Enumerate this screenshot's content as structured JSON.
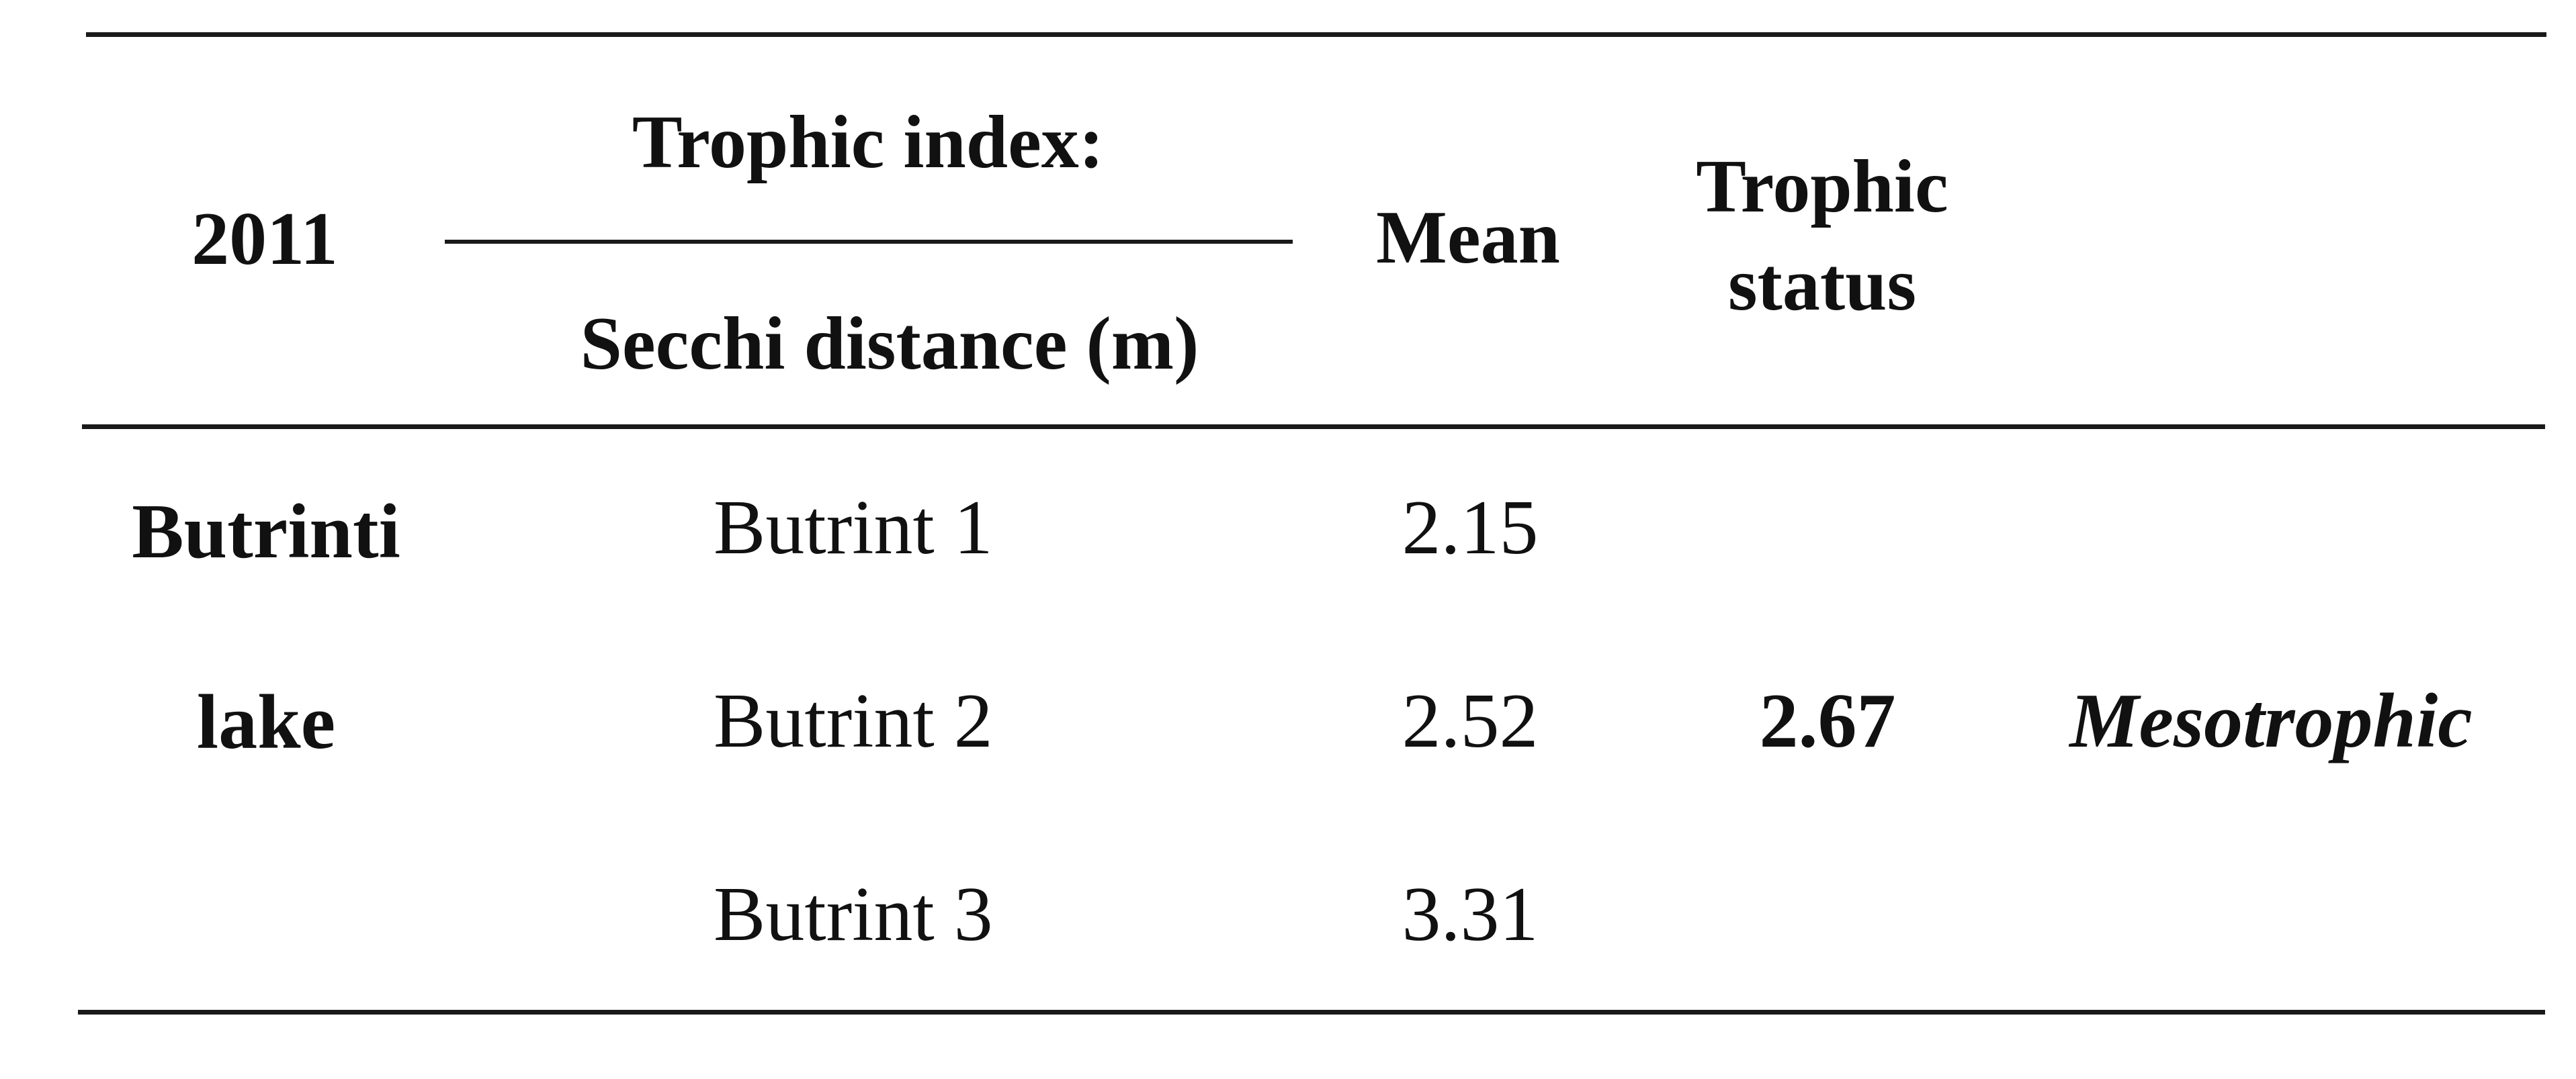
{
  "table": {
    "header": {
      "year": "2011",
      "trophic_index": "Trophic index:",
      "secchi": "Secchi distance (m)",
      "mean": "Mean",
      "trophic_status_line1": "Trophic",
      "trophic_status_line2": "status"
    },
    "site_line1": "Butrinti",
    "site_line2": "lake",
    "rows": [
      {
        "station": "Butrint 1",
        "value": "2.15"
      },
      {
        "station": "Butrint 2",
        "value": "2.52"
      },
      {
        "station": "Butrint 3",
        "value": "3.31"
      }
    ],
    "mean_value": "2.67",
    "status_value": "Mesotrophic"
  }
}
